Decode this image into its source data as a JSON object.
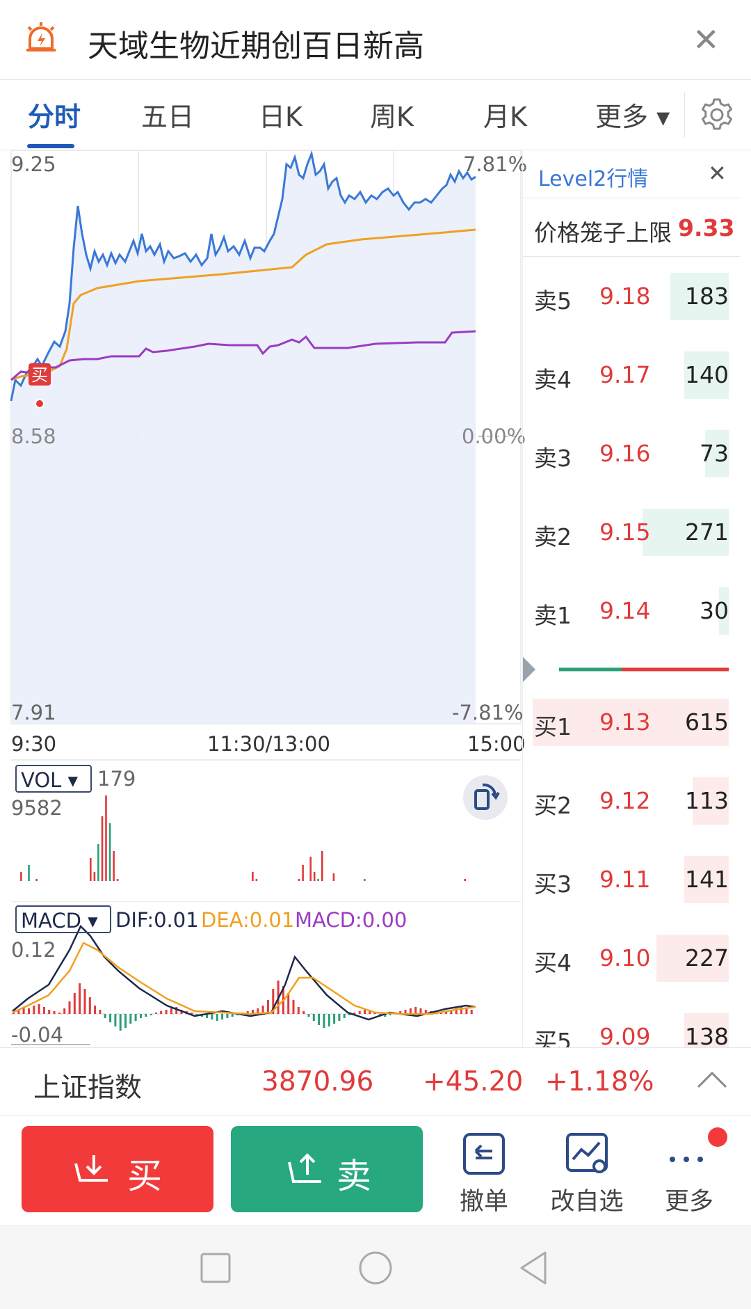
{
  "header": {
    "title": "天域生物近期创百日新高",
    "icon": "alarm-icon",
    "close_icon": "close-icon"
  },
  "tabs": [
    {
      "label": "分时",
      "active": true
    },
    {
      "label": "五日"
    },
    {
      "label": "日K"
    },
    {
      "label": "周K"
    },
    {
      "label": "月K"
    },
    {
      "label": "更多 ▾"
    }
  ],
  "settings_icon": "gear-icon",
  "chart_labels": {
    "price_high": "9.25",
    "price_low": "7.91",
    "price_mid": "8.58",
    "pct_high": "7.81%",
    "pct_low": "-7.81%",
    "pct_mid": "0.00%",
    "time_start": "9:30",
    "time_mid": "11:30/13:00",
    "time_end": "15:00",
    "buy_marker": "买"
  },
  "volume_panel": {
    "selector": "VOL ▾",
    "value": "179",
    "max_label": "9582"
  },
  "macd_panel": {
    "selector": "MACD ▾",
    "dif": "DIF:0.01",
    "dea": "DEA:0.01",
    "macd": "MACD:0.00",
    "top_label": "0.12",
    "bottom_label": "-0.04"
  },
  "level2": {
    "title": "Level2行情",
    "cage_label": "价格笼子上限",
    "cage_value": "9.33",
    "asks": [
      {
        "label": "卖5",
        "price": "9.18",
        "volume": "183"
      },
      {
        "label": "卖4",
        "price": "9.17",
        "volume": "140"
      },
      {
        "label": "卖3",
        "price": "9.16",
        "volume": "73"
      },
      {
        "label": "卖2",
        "price": "9.15",
        "volume": "271"
      },
      {
        "label": "卖1",
        "price": "9.14",
        "volume": "30"
      }
    ],
    "bids": [
      {
        "label": "买1",
        "price": "9.13",
        "volume": "615"
      },
      {
        "label": "买2",
        "price": "9.12",
        "volume": "113"
      },
      {
        "label": "买3",
        "price": "9.11",
        "volume": "141"
      },
      {
        "label": "买4",
        "price": "9.10",
        "volume": "227"
      },
      {
        "label": "买5",
        "price": "9.09",
        "volume": "138"
      }
    ]
  },
  "index_bar": {
    "name": "上证指数",
    "value": "3870.96",
    "change": "+45.20",
    "pct": "+1.18%"
  },
  "actions": {
    "buy": "买",
    "sell": "卖",
    "cancel": "撤单",
    "watchlist": "改自选",
    "more": "更多"
  },
  "colors": {
    "up": "#e03a3a",
    "down": "#1aa37a",
    "accent": "#1e5ab8",
    "price_line": "#3a78d6",
    "avg_line": "#f0a020",
    "purple_line": "#9b3cc0"
  }
}
